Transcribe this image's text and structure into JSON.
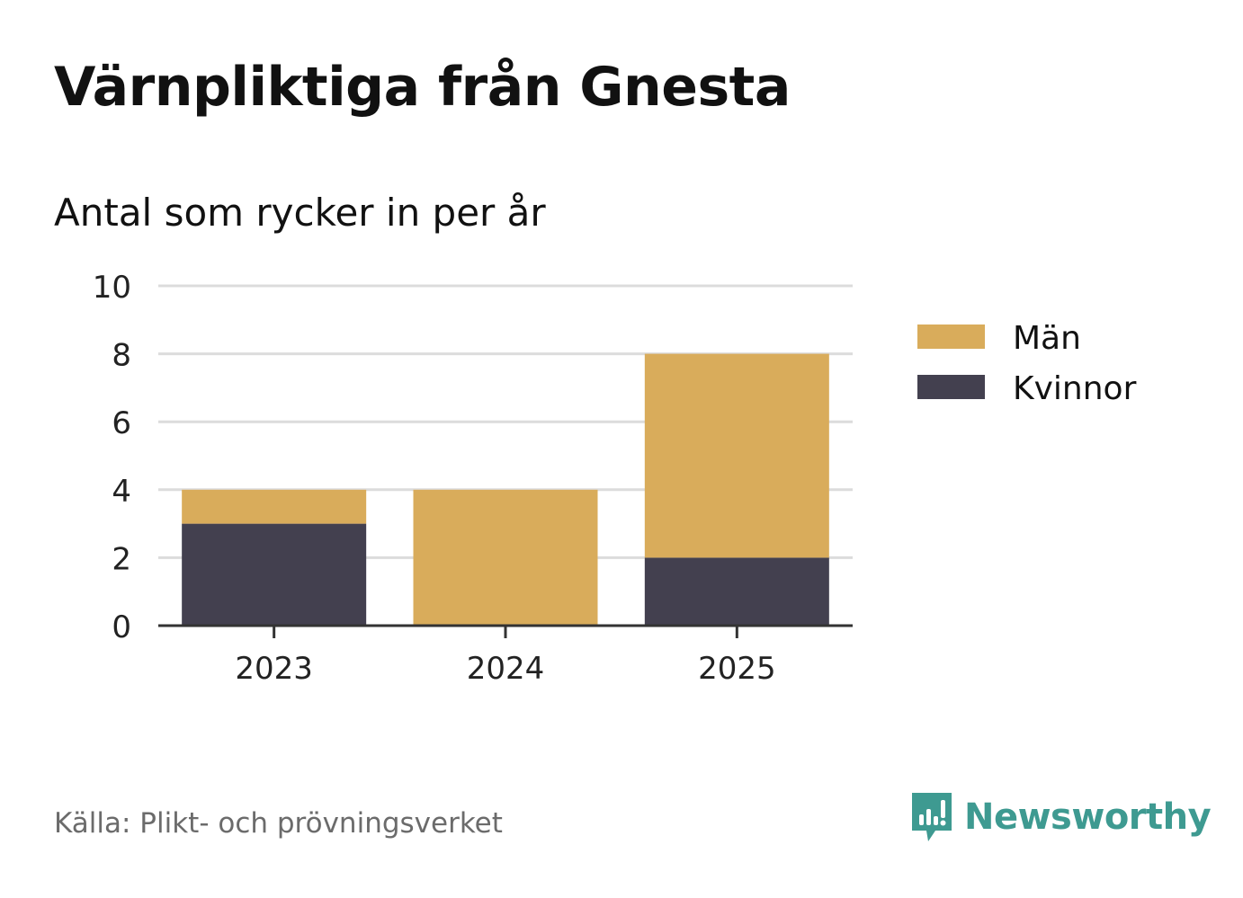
{
  "title": "Värnpliktiga från Gnesta",
  "subtitle": "Antal som rycker in per år",
  "source": "Källa: Plikt- och prövningsverket",
  "brand": {
    "name": "Newsworthy",
    "icon": "newsworthy-logo-icon",
    "color": "#3e9a91"
  },
  "chart_data": {
    "type": "bar",
    "stacked": true,
    "categories": [
      "2023",
      "2024",
      "2025"
    ],
    "series": [
      {
        "name": "Kvinnor",
        "values": [
          3,
          0,
          2
        ],
        "color": "#43404f"
      },
      {
        "name": "Män",
        "values": [
          1,
          4,
          6
        ],
        "color": "#d9ac5b"
      }
    ],
    "legend_order": [
      "Män",
      "Kvinnor"
    ],
    "legend_position": "right",
    "ylim": [
      0,
      10
    ],
    "yticks": [
      0,
      2,
      4,
      6,
      8,
      10
    ],
    "grid": true,
    "xlabel": "",
    "ylabel": ""
  }
}
